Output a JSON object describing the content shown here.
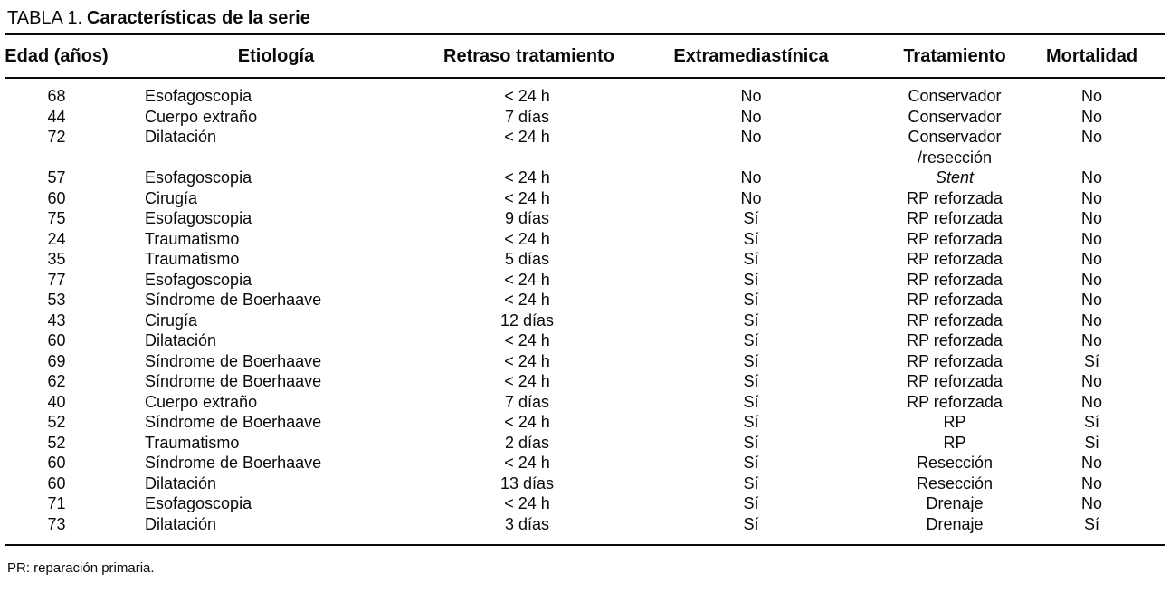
{
  "title": {
    "prefix": "TABLA 1.",
    "text": "Características de la serie"
  },
  "table": {
    "columns": [
      "Edad (años)",
      "Etiología",
      "Retraso tratamiento",
      "Extramediastínica",
      "Tratamiento",
      "Mortalidad"
    ],
    "column_keys": [
      "edad",
      "etiologia",
      "retraso-tratamiento",
      "extramediastinica",
      "tratamiento",
      "mortalidad"
    ],
    "italic_values": [
      "Stent"
    ],
    "rows": [
      [
        "68",
        "Esofagoscopia",
        "< 24 h",
        "No",
        "Conservador",
        "No"
      ],
      [
        "44",
        "Cuerpo extraño",
        "7 días",
        "No",
        "Conservador",
        "No"
      ],
      [
        "72",
        "Dilatación",
        "< 24 h",
        "No",
        "Conservador\n/resección",
        "No"
      ],
      [
        "57",
        "Esofagoscopia",
        "< 24 h",
        "No",
        "Stent",
        "No"
      ],
      [
        "60",
        "Cirugía",
        "< 24 h",
        "No",
        "RP reforzada",
        "No"
      ],
      [
        "75",
        "Esofagoscopia",
        "9 días",
        "Sí",
        "RP reforzada",
        "No"
      ],
      [
        "24",
        "Traumatismo",
        "< 24 h",
        "Sí",
        "RP reforzada",
        "No"
      ],
      [
        "35",
        "Traumatismo",
        "5 días",
        "Sí",
        "RP reforzada",
        "No"
      ],
      [
        "77",
        "Esofagoscopia",
        "< 24 h",
        "Sí",
        "RP reforzada",
        "No"
      ],
      [
        "53",
        "Síndrome de Boerhaave",
        "< 24 h",
        "Sí",
        "RP reforzada",
        "No"
      ],
      [
        "43",
        "Cirugía",
        "12 días",
        "Sí",
        "RP reforzada",
        "No"
      ],
      [
        "60",
        "Dilatación",
        "< 24 h",
        "Sí",
        "RP reforzada",
        "No"
      ],
      [
        "69",
        "Síndrome de Boerhaave",
        "< 24 h",
        "Sí",
        "RP reforzada",
        "Sí"
      ],
      [
        "62",
        "Síndrome de Boerhaave",
        "< 24 h",
        "Sí",
        "RP reforzada",
        "No"
      ],
      [
        "40",
        "Cuerpo extraño",
        "7 días",
        "Sí",
        "RP reforzada",
        "No"
      ],
      [
        "52",
        "Síndrome de Boerhaave",
        "< 24 h",
        "Sí",
        "RP",
        "Sí"
      ],
      [
        "52",
        "Traumatismo",
        "2 días",
        "Sí",
        "RP",
        "Si"
      ],
      [
        "60",
        "Síndrome de Boerhaave",
        "< 24 h",
        "Sí",
        "Resección",
        "No"
      ],
      [
        "60",
        "Dilatación",
        "13 días",
        "Sí",
        "Resección",
        "No"
      ],
      [
        "71",
        "Esofagoscopia",
        "< 24 h",
        "Sí",
        "Drenaje",
        "No"
      ],
      [
        "73",
        "Dilatación",
        "3 días",
        "Sí",
        "Drenaje",
        "Sí"
      ]
    ]
  },
  "footnote": "PR: reparación primaria.",
  "colors": {
    "text": "#0a0a0a",
    "background": "#ffffff",
    "rule": "#0a0a0a"
  }
}
